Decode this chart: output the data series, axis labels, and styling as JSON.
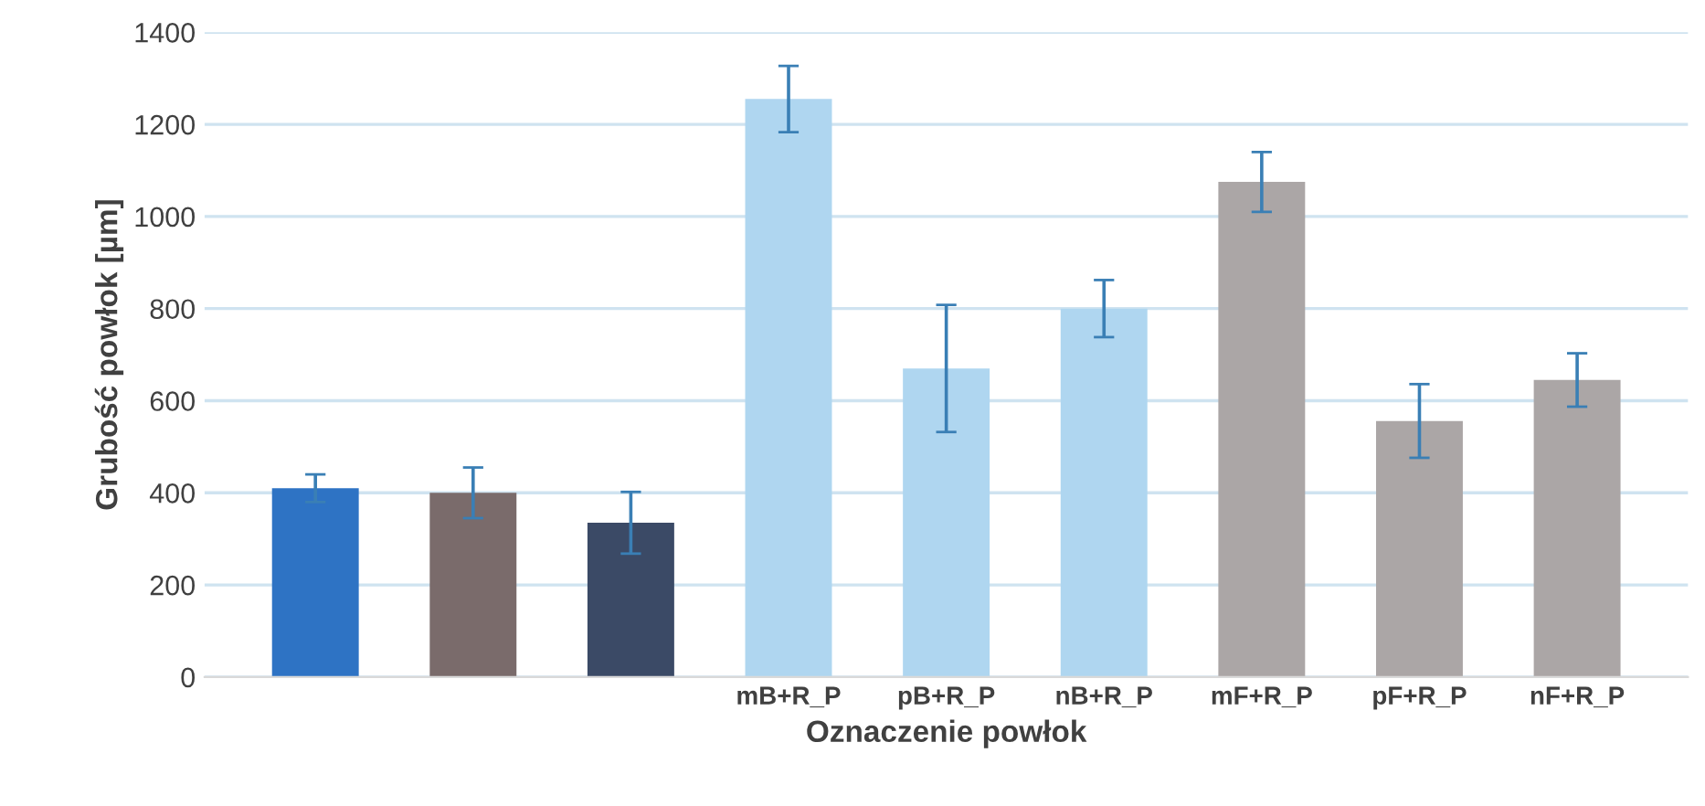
{
  "chart_data": {
    "type": "bar",
    "xlabel": "Oznaczenie powłok",
    "ylabel": "Grubość powłok [µm]",
    "categories": [
      null,
      null,
      null,
      "mB+R_P",
      "pB+R_P",
      "nB+R_P",
      "mF+R_P",
      "pF+R_P",
      "nF+R_P"
    ],
    "values": [
      410,
      400,
      335,
      1255,
      670,
      800,
      1075,
      556,
      645
    ],
    "errors": [
      30,
      55,
      67,
      72,
      138,
      62,
      65,
      80,
      58
    ],
    "colors": [
      "#2e73c4",
      "#7a6b6b",
      "#3b4a66",
      "#afd6f0",
      "#afd6f0",
      "#afd6f0",
      "#aba6a6",
      "#aba6a6",
      "#aba6a6"
    ],
    "ylim": [
      0,
      1400
    ],
    "yticks": [
      0,
      200,
      400,
      600,
      800,
      1000,
      1200,
      1400
    ],
    "grid": "y"
  }
}
